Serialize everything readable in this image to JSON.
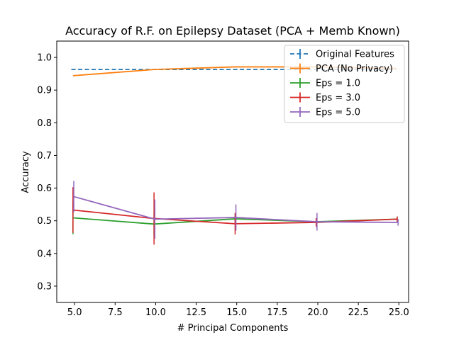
{
  "chart_data": {
    "type": "line",
    "title": "Accuracy of R.F. on Epilepsy Dataset (PCA + Memb Known)",
    "xlabel": "# Principal Components",
    "ylabel": "Accuracy",
    "xlim": [
      3.9,
      25.6
    ],
    "ylim": [
      0.25,
      1.05
    ],
    "xticks": [
      5.0,
      7.5,
      10.0,
      12.5,
      15.0,
      17.5,
      20.0,
      22.5,
      25.0
    ],
    "xtick_labels": [
      "5.0",
      "7.5",
      "10.0",
      "12.5",
      "15.0",
      "17.5",
      "20.0",
      "22.5",
      "25.0"
    ],
    "yticks": [
      0.3,
      0.4,
      0.5,
      0.6,
      0.7,
      0.8,
      0.9,
      1.0
    ],
    "ytick_labels": [
      "0.3",
      "0.4",
      "0.5",
      "0.6",
      "0.7",
      "0.8",
      "0.9",
      "1.0"
    ],
    "grid": false,
    "legend_position": "top-right",
    "series": [
      {
        "name": "Original Features",
        "color": "#1f77b4",
        "dashed": true,
        "x": [
          4.8,
          9.8,
          14.8,
          19.8,
          24.8
        ],
        "y": [
          0.963,
          0.963,
          0.963,
          0.963,
          0.963
        ],
        "err": [
          0,
          0,
          0,
          0,
          0
        ]
      },
      {
        "name": "PCA (No Privacy)",
        "color": "#ff7f0e",
        "dashed": false,
        "x": [
          4.9,
          9.9,
          14.9,
          19.9,
          24.9
        ],
        "y": [
          0.944,
          0.963,
          0.971,
          0.971,
          0.966
        ],
        "err": [
          0,
          0,
          0,
          0,
          0
        ]
      },
      {
        "name": "Eps = 1.0",
        "color": "#2ca02c",
        "dashed": false,
        "x": [
          4.9,
          9.9,
          14.9,
          19.9,
          24.9
        ],
        "y": [
          0.509,
          0.49,
          0.506,
          0.497,
          0.505
        ],
        "err": [
          0.05,
          0.035,
          0.01,
          0.01,
          0.008
        ]
      },
      {
        "name": "Eps = 3.0",
        "color": "#d62728",
        "dashed": false,
        "x": [
          4.9,
          9.9,
          14.9,
          19.9,
          24.9
        ],
        "y": [
          0.533,
          0.507,
          0.491,
          0.495,
          0.505
        ],
        "err": [
          0.07,
          0.08,
          0.033,
          0.013,
          0.008
        ]
      },
      {
        "name": "Eps = 5.0",
        "color": "#9467bd",
        "dashed": false,
        "x": [
          4.95,
          9.95,
          14.95,
          19.95,
          24.95
        ],
        "y": [
          0.574,
          0.505,
          0.51,
          0.497,
          0.495
        ],
        "err": [
          0.048,
          0.06,
          0.04,
          0.027,
          0.01
        ]
      }
    ]
  }
}
